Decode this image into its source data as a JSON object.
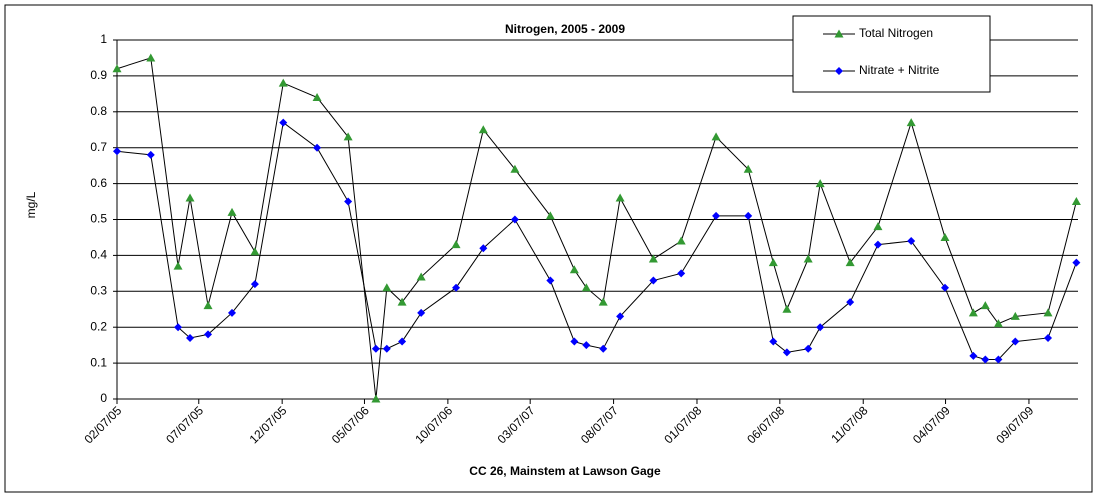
{
  "chart_data": {
    "type": "line",
    "title": "Nitrogen, 2005 - 2009",
    "x_label": "CC 26, Mainstem at Lawson Gage",
    "y_label": "mg/L",
    "x": [
      "2005-02-07",
      "2005-04-10",
      "2005-05-30",
      "2005-06-21",
      "2005-07-24",
      "2005-09-06",
      "2005-10-18",
      "2005-12-09",
      "2006-02-09",
      "2006-04-07",
      "2006-05-28",
      "2006-06-17",
      "2006-07-15",
      "2006-08-19",
      "2006-10-22",
      "2006-12-11",
      "2007-02-07",
      "2007-04-13",
      "2007-05-27",
      "2007-06-18",
      "2007-07-19",
      "2007-08-19",
      "2007-10-19",
      "2007-12-09",
      "2008-02-11",
      "2008-04-10",
      "2008-05-26",
      "2008-06-20",
      "2008-07-29",
      "2008-08-20",
      "2008-10-14",
      "2008-12-04",
      "2009-02-03",
      "2009-04-06",
      "2009-05-28",
      "2009-06-19",
      "2009-07-13",
      "2009-08-13",
      "2009-10-12",
      "2009-12-03"
    ],
    "series": [
      {
        "name": "Total Nitrogen",
        "color": "#339933",
        "marker": "triangle",
        "values": [
          0.92,
          0.95,
          0.37,
          0.56,
          0.26,
          0.52,
          0.41,
          0.88,
          0.84,
          0.73,
          0.0,
          0.31,
          0.27,
          0.34,
          0.43,
          0.75,
          0.64,
          0.51,
          0.36,
          0.31,
          0.27,
          0.56,
          0.39,
          0.44,
          0.73,
          0.64,
          0.38,
          0.25,
          0.39,
          0.6,
          0.38,
          0.48,
          0.77,
          0.45,
          0.24,
          0.26,
          0.21,
          0.23,
          0.24,
          0.55
        ]
      },
      {
        "name": "Nitrate + Nitrite",
        "color": "#0000ff",
        "marker": "diamond",
        "values": [
          0.69,
          0.68,
          0.2,
          0.17,
          0.18,
          0.24,
          0.32,
          0.77,
          0.7,
          0.55,
          0.14,
          0.14,
          0.16,
          0.24,
          0.31,
          0.42,
          0.5,
          0.33,
          0.16,
          0.15,
          0.14,
          0.23,
          0.33,
          0.35,
          0.51,
          0.51,
          0.16,
          0.13,
          0.14,
          0.2,
          0.27,
          0.43,
          0.44,
          0.31,
          0.12,
          0.11,
          0.11,
          0.16,
          0.17,
          0.38
        ]
      }
    ],
    "xlim": [
      "2005-02-07",
      "2009-12-06"
    ],
    "xticks": [
      {
        "value": "2005-02-07",
        "label": "02/07/05"
      },
      {
        "value": "2005-07-07",
        "label": "07/07/05"
      },
      {
        "value": "2005-12-07",
        "label": "12/07/05"
      },
      {
        "value": "2006-05-07",
        "label": "05/07/06"
      },
      {
        "value": "2006-10-07",
        "label": "10/07/06"
      },
      {
        "value": "2007-03-07",
        "label": "03/07/07"
      },
      {
        "value": "2007-08-07",
        "label": "08/07/07"
      },
      {
        "value": "2008-01-07",
        "label": "01/07/08"
      },
      {
        "value": "2008-06-07",
        "label": "06/07/08"
      },
      {
        "value": "2008-11-07",
        "label": "11/07/08"
      },
      {
        "value": "2009-04-07",
        "label": "04/07/09"
      },
      {
        "value": "2009-09-07",
        "label": "09/07/09"
      }
    ],
    "ylim": [
      0,
      1
    ],
    "yticks": [
      0,
      0.1,
      0.2,
      0.3,
      0.4,
      0.5,
      0.6,
      0.7,
      0.8,
      0.9,
      1
    ],
    "grid": true,
    "legend": "upper right"
  }
}
